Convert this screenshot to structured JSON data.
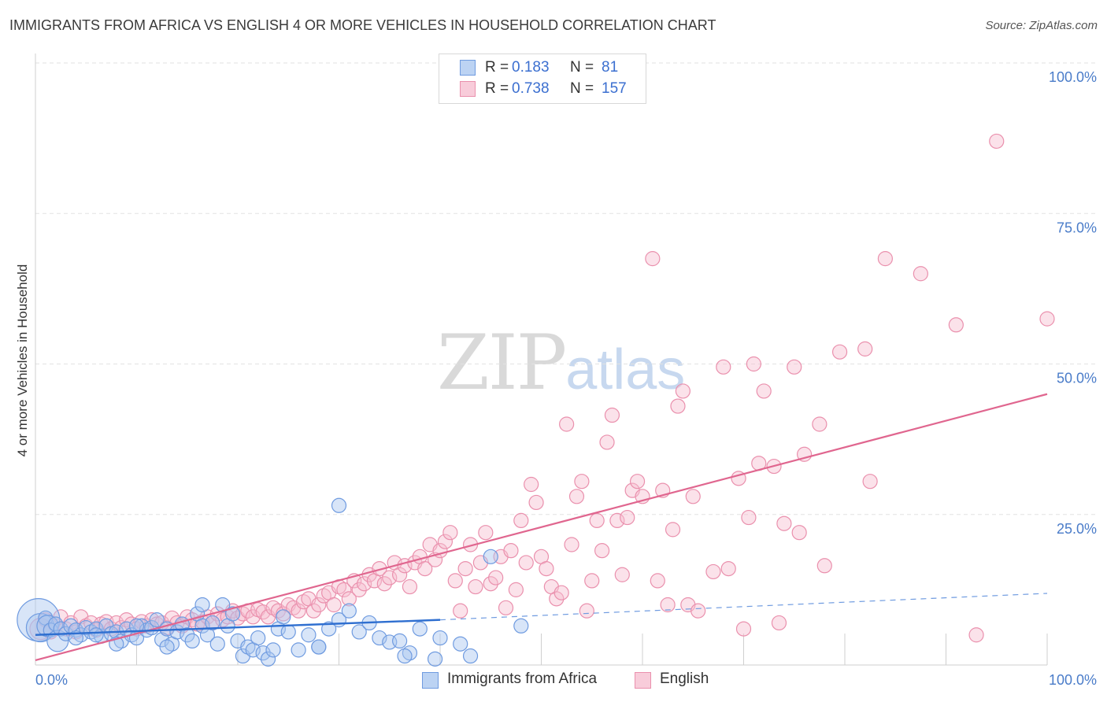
{
  "title": "IMMIGRANTS FROM AFRICA VS ENGLISH 4 OR MORE VEHICLES IN HOUSEHOLD CORRELATION CHART",
  "source": "Source: ZipAtlas.com",
  "watermark": {
    "zip": "ZIP",
    "atlas": "atlas"
  },
  "legend": {
    "r_label": "R =",
    "n_label": "N =",
    "items": [
      {
        "r": "0.183",
        "n": "81"
      },
      {
        "r": "0.738",
        "n": "157"
      }
    ]
  },
  "bottom_legend": [
    "Immigrants from Africa",
    "English"
  ],
  "colors": {
    "blue_fill": "#a9c6f0",
    "blue_stroke": "#6f9be0",
    "blue_line": "#2f6fd0",
    "pink_fill": "#f6bfd0",
    "pink_stroke": "#ea90ad",
    "pink_line": "#e0668f",
    "grid": "#e2e2e2",
    "axis_text": "#4a7cc9"
  },
  "chart_data": {
    "type": "scatter",
    "title": "IMMIGRANTS FROM AFRICA VS ENGLISH 4 OR MORE VEHICLES IN HOUSEHOLD CORRELATION CHART",
    "xlabel": "",
    "ylabel": "4 or more Vehicles in Household",
    "xlim": [
      0,
      100
    ],
    "ylim": [
      0,
      100
    ],
    "x_tick_labels": [
      "0.0%",
      "100.0%"
    ],
    "y_tick_labels": [
      "25.0%",
      "50.0%",
      "75.0%",
      "100.0%"
    ],
    "y_ticks": [
      25,
      50,
      75,
      100
    ],
    "grid": true,
    "legend_position": "top-center",
    "series": [
      {
        "name": "Immigrants from Africa",
        "color": "#a9c6f0",
        "trend": {
          "x0": 0,
          "y0": 5.0,
          "x1": 40,
          "y1": 7.5,
          "dash_to": [
            100,
            11.9
          ]
        },
        "points": [
          [
            0.3,
            7.5,
            3
          ],
          [
            0.5,
            6.2,
            2
          ],
          [
            1,
            7.8,
            1
          ],
          [
            1.2,
            6.5,
            1.5
          ],
          [
            1.5,
            5.8,
            1
          ],
          [
            2,
            6.8,
            1
          ],
          [
            2.2,
            4,
            1.5
          ],
          [
            2.5,
            6,
            1
          ],
          [
            3,
            5.2,
            1
          ],
          [
            3.5,
            6.5,
            1
          ],
          [
            4,
            5.8,
            1
          ],
          [
            4.5,
            5,
            1
          ],
          [
            5,
            6.2,
            1
          ],
          [
            5.5,
            5.5,
            1
          ],
          [
            6,
            6,
            1
          ],
          [
            6.5,
            4.8,
            1
          ],
          [
            7,
            6.5,
            1
          ],
          [
            7.5,
            5.2,
            1
          ],
          [
            8,
            5.5,
            1
          ],
          [
            8.5,
            4,
            1
          ],
          [
            9,
            6,
            1
          ],
          [
            9.5,
            5,
            1
          ],
          [
            10,
            4.5,
            1
          ],
          [
            10.5,
            6.5,
            1
          ],
          [
            11,
            5.8,
            1
          ],
          [
            11.5,
            6.2,
            1
          ],
          [
            12,
            7.5,
            1
          ],
          [
            12.5,
            4.2,
            1
          ],
          [
            13,
            6,
            1
          ],
          [
            13.5,
            3.5,
            1
          ],
          [
            14,
            5.5,
            1
          ],
          [
            14.5,
            6.8,
            1
          ],
          [
            15,
            5,
            1
          ],
          [
            15.5,
            4,
            1
          ],
          [
            16,
            8.5,
            1
          ],
          [
            16.5,
            6.5,
            1
          ],
          [
            17,
            5,
            1
          ],
          [
            17.5,
            7,
            1
          ],
          [
            18,
            3.5,
            1
          ],
          [
            18.5,
            10,
            1
          ],
          [
            19,
            6.5,
            1
          ],
          [
            19.5,
            8.5,
            1
          ],
          [
            20,
            4,
            1
          ],
          [
            20.5,
            1.5,
            1
          ],
          [
            21,
            3,
            1
          ],
          [
            21.5,
            2.5,
            1
          ],
          [
            22,
            4.5,
            1
          ],
          [
            22.5,
            2,
            1
          ],
          [
            23,
            1,
            1
          ],
          [
            23.5,
            2.5,
            1
          ],
          [
            24,
            6,
            1
          ],
          [
            24.5,
            8,
            1
          ],
          [
            25,
            5.5,
            1
          ],
          [
            26,
            2.5,
            1
          ],
          [
            27,
            5,
            1
          ],
          [
            28,
            3,
            1
          ],
          [
            29,
            6,
            1
          ],
          [
            30,
            7.5,
            1
          ],
          [
            31,
            9,
            1
          ],
          [
            32,
            5.5,
            1
          ],
          [
            33,
            7,
            1
          ],
          [
            34,
            4.5,
            1
          ],
          [
            35,
            3.8,
            1
          ],
          [
            36,
            4,
            1
          ],
          [
            37,
            2,
            1
          ],
          [
            38,
            6,
            1
          ],
          [
            40,
            4.5,
            1
          ],
          [
            42,
            3.5,
            1
          ],
          [
            43,
            1.5,
            1
          ],
          [
            45,
            18,
            1
          ],
          [
            48,
            6.5,
            1
          ],
          [
            30,
            26.5,
            1
          ],
          [
            28,
            3,
            1
          ],
          [
            36.5,
            1.5,
            1
          ],
          [
            39.5,
            1,
            1
          ],
          [
            10,
            6.5,
            1
          ],
          [
            13,
            3,
            1
          ],
          [
            16.5,
            10,
            1
          ],
          [
            8,
            3.5,
            1
          ],
          [
            6,
            5,
            1
          ],
          [
            4,
            4.5,
            1
          ]
        ]
      },
      {
        "name": "English",
        "color": "#f6bfd0",
        "trend": {
          "x0": 0,
          "y0": 0.8,
          "x1": 100,
          "y1": 45.0
        },
        "points": [
          [
            0.5,
            6,
            1.5
          ],
          [
            1,
            7.5,
            1
          ],
          [
            1.5,
            5.5,
            1
          ],
          [
            2,
            6.5,
            1
          ],
          [
            2.5,
            8,
            1
          ],
          [
            3,
            6,
            1
          ],
          [
            3.5,
            7,
            1
          ],
          [
            4,
            5.5,
            1
          ],
          [
            4.5,
            8,
            1
          ],
          [
            5,
            6.5,
            1
          ],
          [
            5.5,
            7,
            1
          ],
          [
            6,
            5.8,
            1
          ],
          [
            6.5,
            6.8,
            1
          ],
          [
            7,
            7.2,
            1
          ],
          [
            7.5,
            6,
            1
          ],
          [
            8,
            7,
            1
          ],
          [
            8.5,
            6.2,
            1
          ],
          [
            9,
            7.5,
            1
          ],
          [
            9.5,
            6.8,
            1
          ],
          [
            10,
            6,
            1
          ],
          [
            10.5,
            7.2,
            1
          ],
          [
            11,
            6.5,
            1
          ],
          [
            11.5,
            7.5,
            1
          ],
          [
            12,
            6.8,
            1
          ],
          [
            12.5,
            7,
            1
          ],
          [
            13,
            6.2,
            1
          ],
          [
            13.5,
            7.8,
            1
          ],
          [
            14,
            7,
            1
          ],
          [
            14.5,
            6.5,
            1
          ],
          [
            15,
            8,
            1
          ],
          [
            15.5,
            7.5,
            1
          ],
          [
            16,
            6.8,
            1
          ],
          [
            16.5,
            7.2,
            1
          ],
          [
            17,
            8,
            1
          ],
          [
            17.5,
            7,
            1
          ],
          [
            18,
            8.5,
            1
          ],
          [
            18.5,
            7.5,
            1
          ],
          [
            19,
            8,
            1
          ],
          [
            19.5,
            9,
            1
          ],
          [
            20,
            7.8,
            1
          ],
          [
            20.5,
            8.5,
            1
          ],
          [
            21,
            9,
            1
          ],
          [
            21.5,
            8,
            1
          ],
          [
            22,
            9.2,
            1
          ],
          [
            22.5,
            8.8,
            1
          ],
          [
            23,
            8,
            1
          ],
          [
            23.5,
            9.5,
            1
          ],
          [
            24,
            9,
            1
          ],
          [
            24.5,
            8.5,
            1
          ],
          [
            25,
            10,
            1
          ],
          [
            25.5,
            9.5,
            1
          ],
          [
            26,
            9,
            1
          ],
          [
            26.5,
            10.5,
            1
          ],
          [
            27,
            11,
            1
          ],
          [
            27.5,
            9,
            1
          ],
          [
            28,
            10,
            1
          ],
          [
            28.5,
            11.5,
            1
          ],
          [
            29,
            12,
            1
          ],
          [
            29.5,
            10,
            1
          ],
          [
            30,
            13,
            1
          ],
          [
            30.5,
            12.5,
            1
          ],
          [
            31,
            11,
            1
          ],
          [
            31.5,
            14,
            1
          ],
          [
            32,
            12.5,
            1
          ],
          [
            32.5,
            13.5,
            1
          ],
          [
            33,
            15,
            1
          ],
          [
            33.5,
            14,
            1
          ],
          [
            34,
            16,
            1
          ],
          [
            34.5,
            13.5,
            1
          ],
          [
            35,
            14.5,
            1
          ],
          [
            35.5,
            17,
            1
          ],
          [
            36,
            15,
            1
          ],
          [
            36.5,
            16.5,
            1
          ],
          [
            37,
            13,
            1
          ],
          [
            37.5,
            17,
            1
          ],
          [
            38,
            18,
            1
          ],
          [
            38.5,
            16,
            1
          ],
          [
            39,
            20,
            1
          ],
          [
            39.5,
            17.5,
            1
          ],
          [
            40,
            19,
            1
          ],
          [
            40.5,
            20.5,
            1
          ],
          [
            41,
            22,
            1
          ],
          [
            41.5,
            14,
            1
          ],
          [
            42,
            9,
            1
          ],
          [
            42.5,
            16,
            1
          ],
          [
            43,
            20,
            1
          ],
          [
            43.5,
            13,
            1
          ],
          [
            44,
            17,
            1
          ],
          [
            44.5,
            22,
            1
          ],
          [
            45,
            13.5,
            1
          ],
          [
            45.5,
            14.5,
            1
          ],
          [
            46,
            18,
            1
          ],
          [
            46.5,
            9.5,
            1
          ],
          [
            47,
            19,
            1
          ],
          [
            47.5,
            12.5,
            1
          ],
          [
            48,
            24,
            1
          ],
          [
            48.5,
            17,
            1
          ],
          [
            49,
            30,
            1
          ],
          [
            49.5,
            27,
            1
          ],
          [
            50,
            18,
            1
          ],
          [
            50.5,
            16,
            1
          ],
          [
            51,
            13,
            1
          ],
          [
            51.5,
            11,
            1
          ],
          [
            52,
            12,
            1
          ],
          [
            52.5,
            40,
            1
          ],
          [
            53,
            20,
            1
          ],
          [
            53.5,
            28,
            1
          ],
          [
            54,
            30.5,
            1
          ],
          [
            54.5,
            9,
            1
          ],
          [
            55,
            14,
            1
          ],
          [
            55.5,
            24,
            1
          ],
          [
            56,
            19,
            1
          ],
          [
            56.5,
            37,
            1
          ],
          [
            57,
            41.5,
            1
          ],
          [
            57.5,
            24,
            1
          ],
          [
            58,
            15,
            1
          ],
          [
            58.5,
            24.5,
            1
          ],
          [
            59,
            29,
            1
          ],
          [
            59.5,
            30.5,
            1
          ],
          [
            60,
            28,
            1
          ],
          [
            61,
            67.5,
            1
          ],
          [
            61.5,
            14,
            1
          ],
          [
            62,
            29,
            1
          ],
          [
            62.5,
            10,
            1
          ],
          [
            63,
            22.5,
            1
          ],
          [
            63.5,
            43,
            1
          ],
          [
            64,
            45.5,
            1
          ],
          [
            64.5,
            10,
            1
          ],
          [
            65,
            28,
            1
          ],
          [
            65.5,
            9,
            1
          ],
          [
            67,
            15.5,
            1
          ],
          [
            68,
            49.5,
            1
          ],
          [
            68.5,
            16,
            1
          ],
          [
            69.5,
            31,
            1
          ],
          [
            70,
            6,
            1
          ],
          [
            70.5,
            24.5,
            1
          ],
          [
            71,
            50,
            1
          ],
          [
            71.5,
            33.5,
            1
          ],
          [
            72,
            45.5,
            1
          ],
          [
            73,
            33,
            1
          ],
          [
            73.5,
            7,
            1
          ],
          [
            74,
            23.5,
            1
          ],
          [
            75,
            49.5,
            1
          ],
          [
            75.5,
            22,
            1
          ],
          [
            76,
            35,
            1
          ],
          [
            77.5,
            40,
            1
          ],
          [
            78,
            16.5,
            1
          ],
          [
            79.5,
            52,
            1
          ],
          [
            82,
            52.5,
            1
          ],
          [
            82.5,
            30.5,
            1
          ],
          [
            84,
            67.5,
            1
          ],
          [
            87.5,
            65,
            1
          ],
          [
            91,
            56.5,
            1
          ],
          [
            93,
            5,
            1
          ],
          [
            95,
            87,
            1
          ],
          [
            100,
            57.5,
            1
          ]
        ]
      }
    ]
  }
}
